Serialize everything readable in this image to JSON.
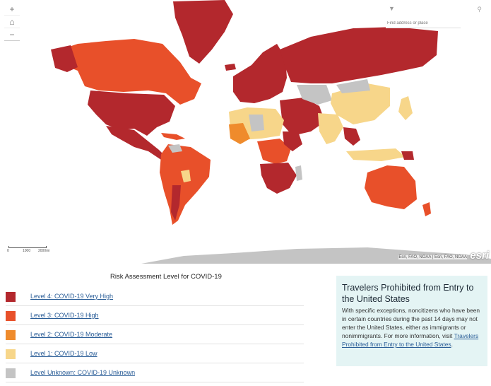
{
  "map": {
    "zoom_in": "+",
    "home": "⌂",
    "zoom_out": "−",
    "search_placeholder": "Find address or place",
    "search_arrow": "▼",
    "search_icon": "⚲",
    "scale_labels": [
      "0",
      "1000",
      "2000mi"
    ],
    "attribution": "Esri, FAO, NOAA | Esri, FAO, NOAA",
    "logo": "esri",
    "colors": {
      "level4": "#b3282d",
      "level3": "#e8502a",
      "level2": "#ef8b2c",
      "level1": "#f7d68a",
      "unknown": "#c4c4c4"
    }
  },
  "legend": {
    "title": "Risk Assessment Level for COVID-19",
    "items": [
      {
        "label": "Level 4: COVID-19 Very High",
        "color": "#b3282d"
      },
      {
        "label": "Level 3: COVID-19 High",
        "color": "#e8502a"
      },
      {
        "label": "Level 2: COVID-19 Moderate",
        "color": "#ef8b2c"
      },
      {
        "label": "Level 1: COVID-19 Low",
        "color": "#f7d68a"
      },
      {
        "label": "Level Unknown: COVID-19 Unknown",
        "color": "#c4c4c4"
      }
    ]
  },
  "panel": {
    "title": "Travelers Prohibited from Entry to the United States",
    "body": "With specific exceptions, noncitizens who have been in certain countries during the past 14 days may not enter the United States, either as immigrants or nonimmigrants. For more information, visit ",
    "link": "Travelers Prohibited from Entry to the United States",
    "end": "."
  }
}
